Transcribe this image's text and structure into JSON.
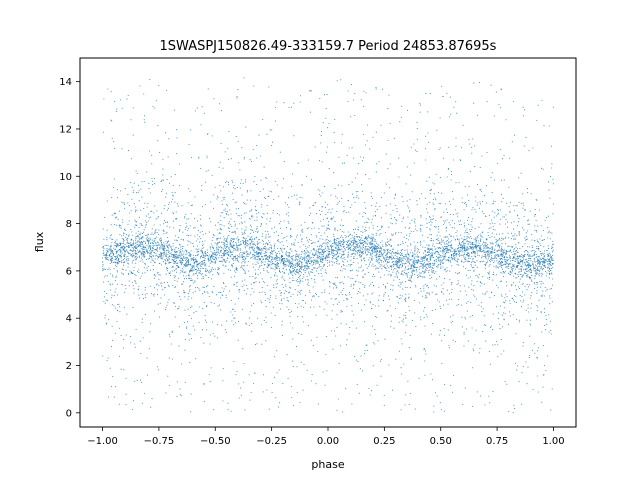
{
  "chart_data": {
    "type": "scatter",
    "title": "1SWASPJ150826.49-333159.7 Period 24853.87695s",
    "xlabel": "phase",
    "ylabel": "flux",
    "xlim": [
      -1.1,
      1.1
    ],
    "ylim": [
      -0.6,
      15.0
    ],
    "xticks": [
      "−1.00",
      "−0.75",
      "−0.50",
      "−0.25",
      "0.00",
      "0.25",
      "0.50",
      "0.75",
      "1.00"
    ],
    "xtick_values": [
      -1.0,
      -0.75,
      -0.5,
      -0.25,
      0.0,
      0.25,
      0.5,
      0.75,
      1.0
    ],
    "yticks": [
      "0",
      "2",
      "4",
      "6",
      "8",
      "10",
      "12",
      "14"
    ],
    "ytick_values": [
      0,
      2,
      4,
      6,
      8,
      10,
      12,
      14
    ],
    "grid": false,
    "marker_color": "#1f77b4",
    "series": [
      {
        "x": [
          -1.0,
          -0.9,
          -0.8,
          -0.75,
          -0.7,
          -0.6,
          -0.5,
          -0.4,
          -0.35,
          -0.3,
          -0.2,
          -0.15,
          -0.1,
          0.0,
          0.1,
          0.15,
          0.2,
          0.3,
          0.4,
          0.5,
          0.6,
          0.65,
          0.7,
          0.8,
          0.9,
          1.0
        ],
        "y": [
          6.6,
          6.9,
          7.0,
          6.9,
          6.7,
          6.3,
          6.7,
          7.0,
          7.0,
          6.8,
          6.4,
          6.2,
          6.4,
          6.8,
          7.0,
          7.0,
          6.9,
          6.4,
          6.3,
          6.7,
          6.9,
          7.0,
          6.9,
          6.5,
          6.2,
          6.5
        ]
      }
    ]
  }
}
